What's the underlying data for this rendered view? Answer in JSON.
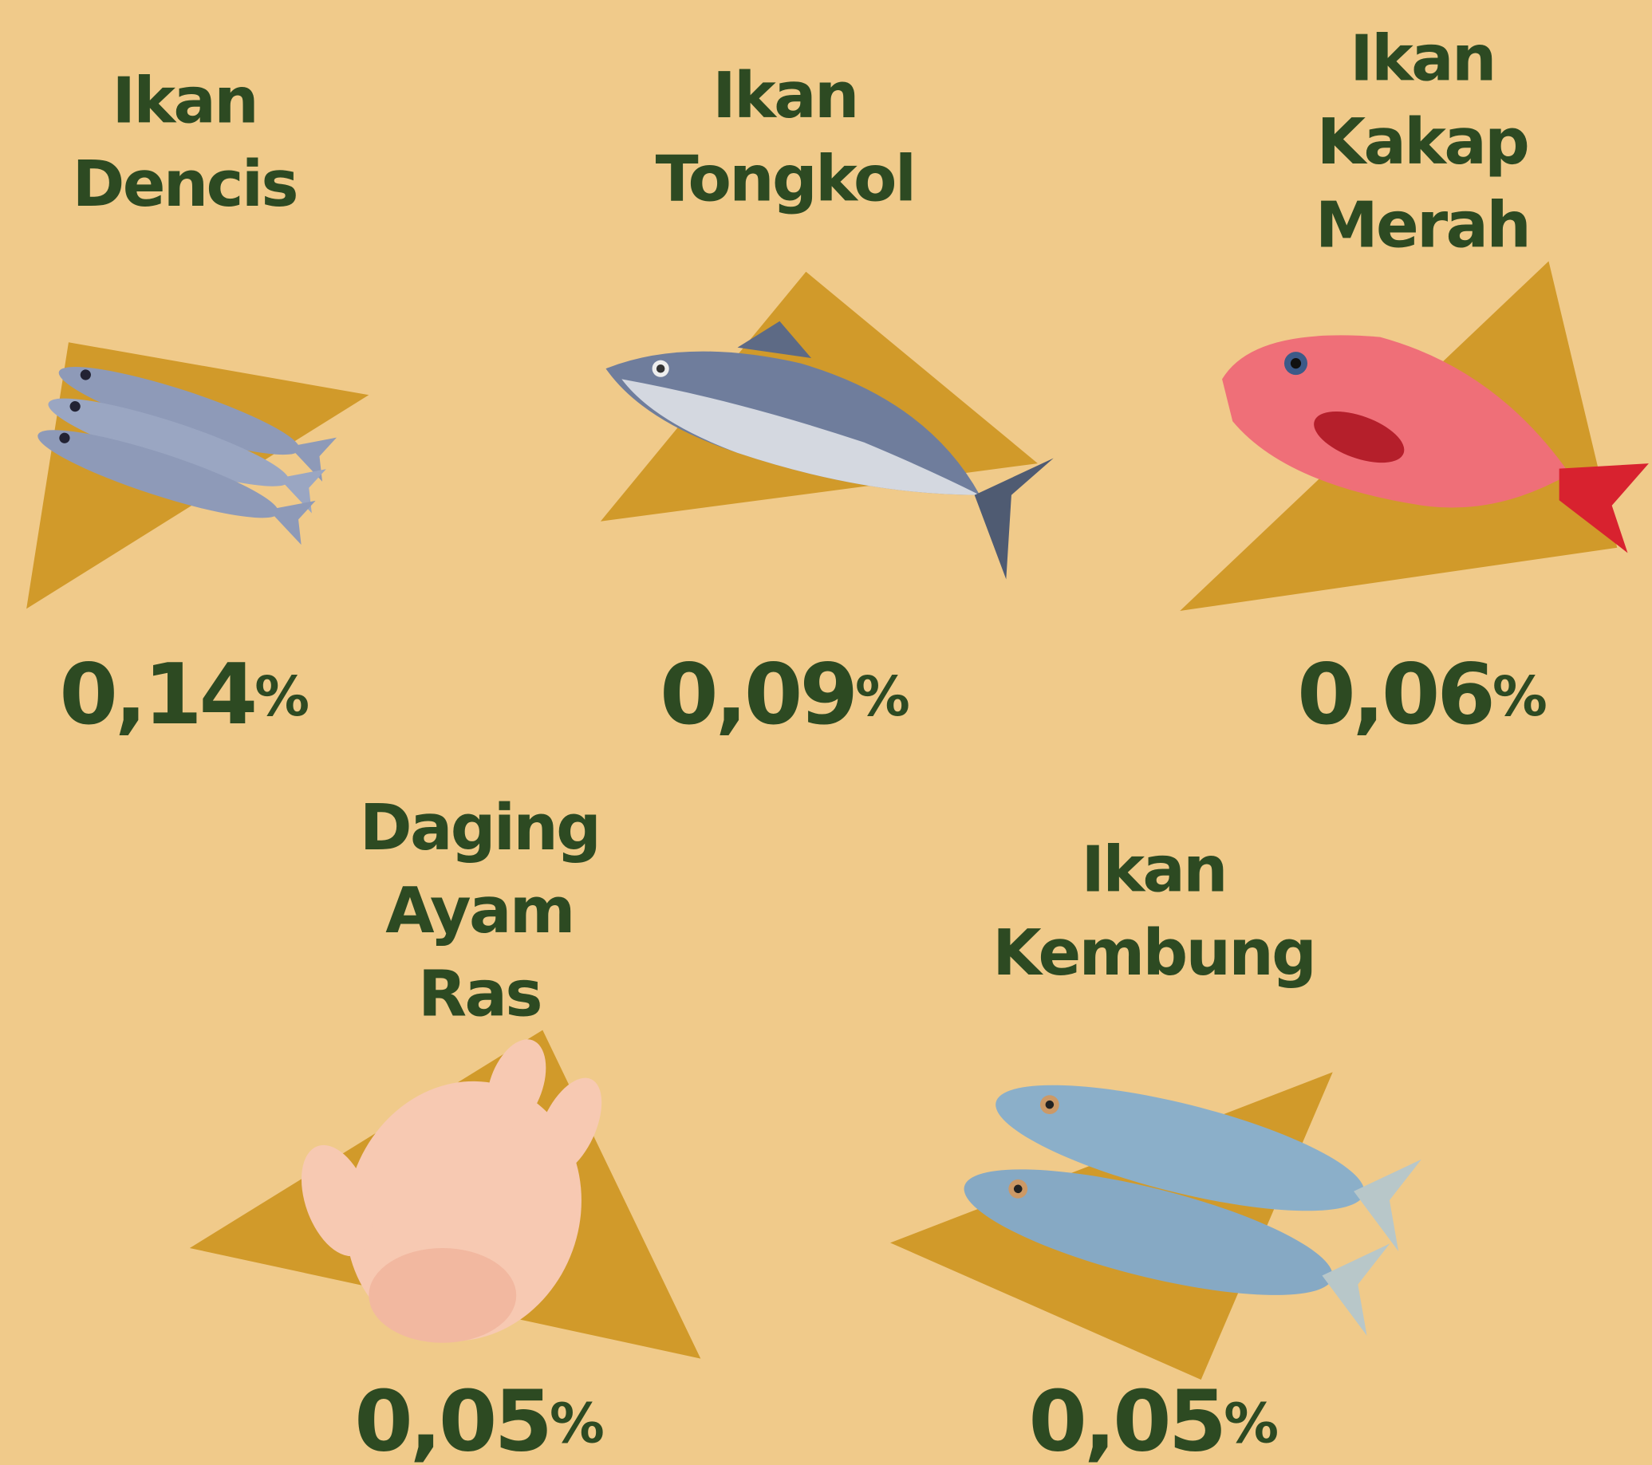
{
  "items": [
    {
      "label": [
        "Ikan",
        "Dencis"
      ],
      "value": "0,14",
      "unit": "%"
    },
    {
      "label": [
        "Ikan",
        "Tongkol"
      ],
      "value": "0,09",
      "unit": "%"
    },
    {
      "label": [
        "Ikan",
        "Kakap",
        "Merah"
      ],
      "value": "0,06",
      "unit": "%"
    },
    {
      "label": [
        "Daging",
        "Ayam",
        "Ras"
      ],
      "value": "0,05",
      "unit": "%"
    },
    {
      "label": [
        "Ikan",
        "Kembung"
      ],
      "value": "0,05",
      "unit": "%"
    }
  ]
}
